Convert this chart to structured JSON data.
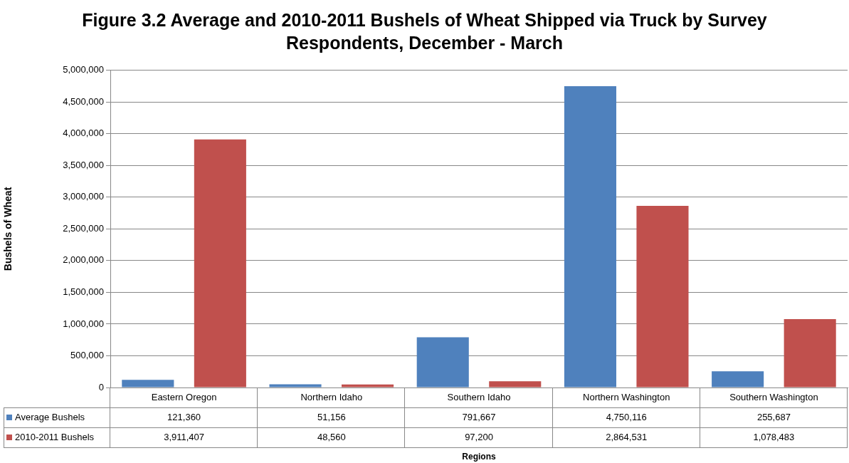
{
  "chart_data": {
    "type": "bar",
    "title": "Figure 3.2 Average and 2010-2011 Bushels of Wheat Shipped via Truck by Survey Respondents, December - March",
    "annotations": [
      "Regions"
    ],
    "ylabel": "Bushels of Wheat",
    "categories": [
      "Eastern Oregon",
      "Northern Idaho",
      "Southern Idaho",
      "Northern Washington",
      "Southern Washington"
    ],
    "series": [
      {
        "name": "Average Bushels",
        "color": "#4f81bd",
        "values": [
          121360,
          51156,
          791667,
          4750116,
          255687
        ],
        "value_labels": [
          "121,360",
          "51,156",
          "791,667",
          "4,750,116",
          "255,687"
        ]
      },
      {
        "name": "2010-2011 Bushels",
        "color": "#c0504d",
        "values": [
          3911407,
          48560,
          97200,
          2864531,
          1078483
        ],
        "value_labels": [
          "3,911,407",
          "48,560",
          "97,200",
          "2,864,531",
          "1,078,483"
        ]
      }
    ],
    "ylim": [
      0,
      5000000
    ],
    "yticks": [
      0,
      {
        "value": 500000,
        "label": "500,000"
      },
      {
        "value": 1000000,
        "label": "1,000,000"
      },
      {
        "value": 1500000,
        "label": "1,500,000"
      },
      {
        "value": 2000000,
        "label": "2,000,000"
      },
      {
        "value": 2500000,
        "label": "2,500,000"
      },
      {
        "value": 3000000,
        "label": "3,000,000"
      },
      {
        "value": 3500000,
        "label": "3,500,000"
      },
      {
        "value": 4000000,
        "label": "4,000,000"
      },
      {
        "value": 4500000,
        "label": "4,500,000"
      },
      {
        "value": 5000000,
        "label": "5,000,000"
      }
    ],
    "grid": "y",
    "legend": "bottom"
  }
}
